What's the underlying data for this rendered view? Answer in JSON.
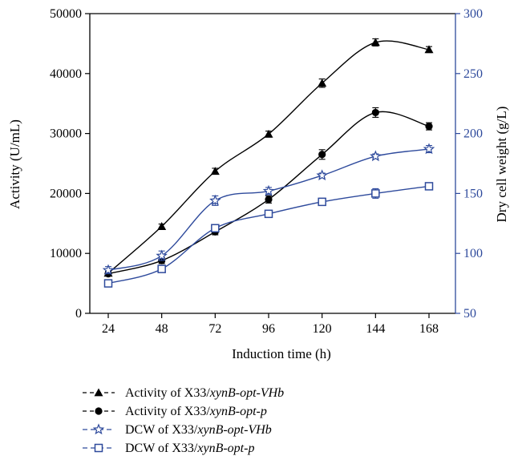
{
  "chart_data": {
    "type": "line",
    "xlabel": "Induction time (h)",
    "ylabel_left": "Activity (U/mL)",
    "ylabel_right": "Dry cell weight (g/L)",
    "x": [
      24,
      48,
      72,
      96,
      120,
      144,
      168
    ],
    "x_ticks": [
      "24",
      "48",
      "72",
      "96",
      "120",
      "144",
      "168"
    ],
    "ylim_left": [
      0,
      50000
    ],
    "y_ticks_left": [
      "0",
      "10000",
      "20000",
      "30000",
      "40000",
      "50000"
    ],
    "ylim_right": [
      50,
      300
    ],
    "y_ticks_right": [
      "50",
      "100",
      "150",
      "200",
      "250",
      "300"
    ],
    "series": [
      {
        "name_prefix": "Activity of X33/",
        "name_italic": "xynB-opt-VHb",
        "axis": "left",
        "marker": "triangle",
        "color": "#000000",
        "values": [
          6700,
          14500,
          23700,
          29900,
          38400,
          45200,
          44000
        ],
        "errors": [
          300,
          400,
          500,
          500,
          700,
          600,
          500
        ]
      },
      {
        "name_prefix": "Activity of X33/",
        "name_italic": "xynB-opt-p",
        "axis": "left",
        "marker": "circle",
        "color": "#000000",
        "values": [
          6600,
          8800,
          13600,
          19000,
          26500,
          33500,
          31200
        ],
        "errors": [
          300,
          500,
          500,
          600,
          800,
          800,
          600
        ]
      },
      {
        "name_prefix": "DCW of X33/",
        "name_italic": "xynB-opt-VHb",
        "axis": "right",
        "marker": "star",
        "color": "#2e4a9c",
        "values": [
          86,
          98,
          144,
          152,
          165,
          181,
          187
        ],
        "errors": [
          3,
          4,
          4,
          3,
          2,
          2,
          3
        ]
      },
      {
        "name_prefix": "DCW of X33/",
        "name_italic": "xynB-opt-p",
        "axis": "right",
        "marker": "square",
        "color": "#2e4a9c",
        "values": [
          75,
          87,
          121,
          133,
          143,
          150,
          156
        ],
        "errors": [
          2,
          2,
          2,
          2,
          3,
          4,
          2
        ]
      }
    ],
    "grid": false,
    "legend_position": "bottom"
  }
}
